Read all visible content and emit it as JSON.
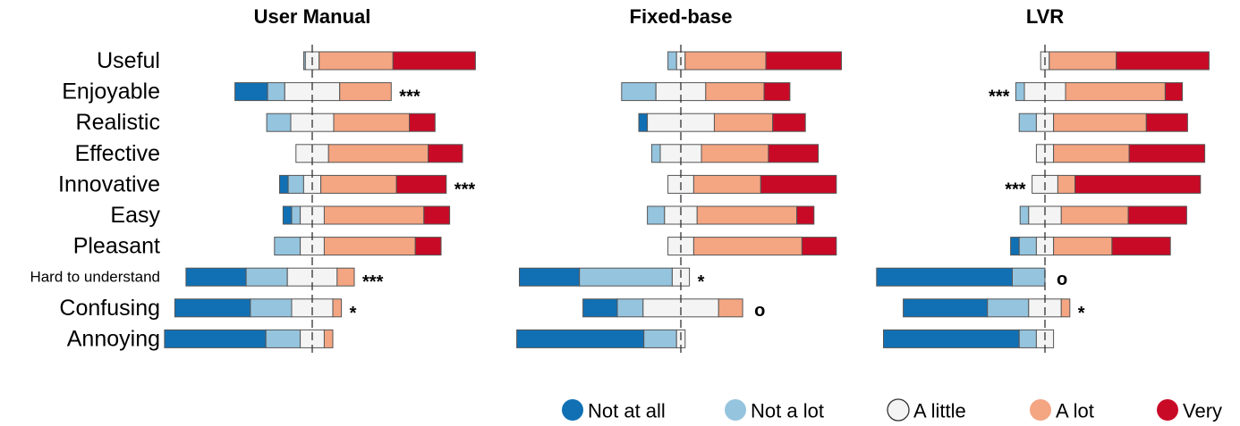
{
  "chart_data": {
    "type": "bar",
    "subtype": "diverging-stacked",
    "categories": [
      "Useful",
      "Enjoyable",
      "Realistic",
      "Effective",
      "Innovative",
      "Easy",
      "Pleasant",
      "Hard to understand",
      "Confusing",
      "Annoying"
    ],
    "legend": {
      "placement": "bottom",
      "entries": [
        {
          "label": "Not at all",
          "color": "#1170b4"
        },
        {
          "label": "Not a lot",
          "color": "#95c4de"
        },
        {
          "label": "A little",
          "color": "#f4f4f4"
        },
        {
          "label": "A lot",
          "color": "#f4a582"
        },
        {
          "label": "Very",
          "color": "#c90a27"
        }
      ]
    },
    "panels": [
      {
        "title": "User Manual",
        "rows": [
          {
            "values": [
              0,
              1,
              8,
              43,
              48
            ],
            "sig": ""
          },
          {
            "values": [
              19,
              10,
              32,
              30,
              0
            ],
            "sig": "***"
          },
          {
            "values": [
              0,
              14,
              25,
              44,
              15
            ],
            "sig": ""
          },
          {
            "values": [
              0,
              0,
              19,
              58,
              20
            ],
            "sig": ""
          },
          {
            "values": [
              5,
              9,
              10,
              44,
              29
            ],
            "sig": "***"
          },
          {
            "values": [
              5,
              5,
              14,
              58,
              15
            ],
            "sig": ""
          },
          {
            "values": [
              0,
              15,
              14,
              53,
              15
            ],
            "sig": ""
          },
          {
            "values": [
              35,
              24,
              29,
              10,
              0
            ],
            "sig": "***"
          },
          {
            "values": [
              44,
              24,
              24,
              5,
              0
            ],
            "sig": "*"
          },
          {
            "values": [
              59,
              20,
              14,
              5,
              0
            ],
            "sig": ""
          }
        ]
      },
      {
        "title": "Fixed-base",
        "rows": [
          {
            "values": [
              0,
              5,
              5,
              47,
              44
            ],
            "sig": ""
          },
          {
            "values": [
              0,
              20,
              29,
              34,
              15
            ],
            "sig": ""
          },
          {
            "values": [
              5,
              0,
              39,
              34,
              19
            ],
            "sig": ""
          },
          {
            "values": [
              0,
              5,
              24,
              39,
              29
            ],
            "sig": ""
          },
          {
            "values": [
              0,
              0,
              15,
              39,
              44
            ],
            "sig": ""
          },
          {
            "values": [
              0,
              10,
              19,
              58,
              10
            ],
            "sig": ""
          },
          {
            "values": [
              0,
              0,
              15,
              63,
              20
            ],
            "sig": ""
          },
          {
            "values": [
              35,
              54,
              10,
              0,
              0
            ],
            "sig": "*"
          },
          {
            "values": [
              20,
              15,
              44,
              14,
              0
            ],
            "sig": "o"
          },
          {
            "values": [
              74,
              19,
              5,
              0,
              0
            ],
            "sig": ""
          }
        ]
      },
      {
        "title": "LVR",
        "rows": [
          {
            "values": [
              0,
              0,
              5,
              39,
              54
            ],
            "sig": ""
          },
          {
            "values": [
              0,
              5,
              24,
              58,
              10
            ],
            "sig": "***"
          },
          {
            "values": [
              0,
              10,
              10,
              54,
              24
            ],
            "sig": ""
          },
          {
            "values": [
              0,
              0,
              10,
              44,
              44
            ],
            "sig": ""
          },
          {
            "values": [
              0,
              0,
              15,
              10,
              73
            ],
            "sig": "***"
          },
          {
            "values": [
              0,
              5,
              19,
              39,
              34
            ],
            "sig": ""
          },
          {
            "values": [
              5,
              10,
              10,
              34,
              34
            ],
            "sig": ""
          },
          {
            "values": [
              79,
              19,
              0,
              0,
              0
            ],
            "sig": "o"
          },
          {
            "values": [
              49,
              24,
              19,
              5,
              0
            ],
            "sig": "*"
          },
          {
            "values": [
              79,
              10,
              10,
              0,
              0
            ],
            "sig": ""
          }
        ]
      }
    ]
  }
}
